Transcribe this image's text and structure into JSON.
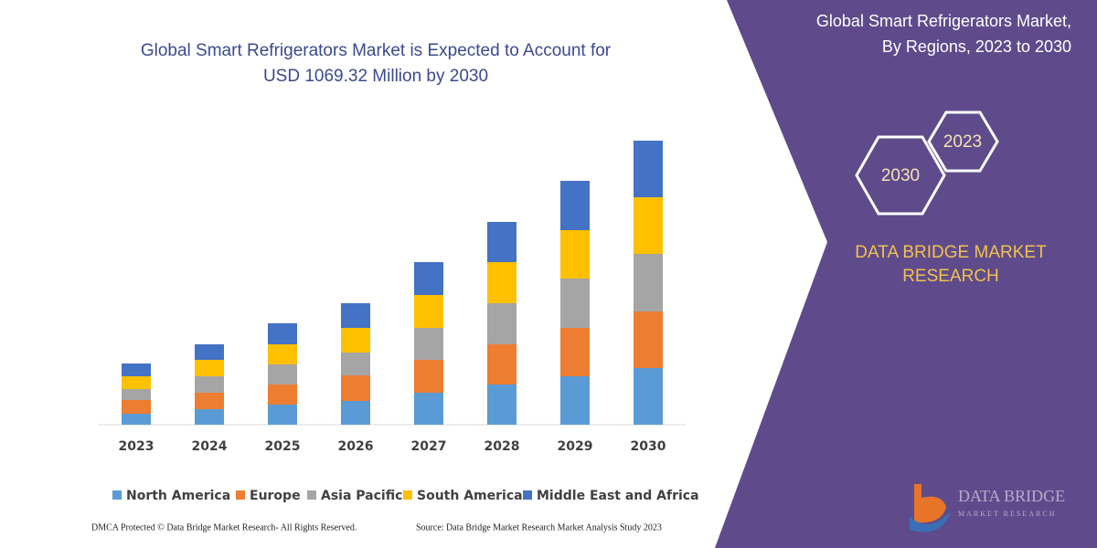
{
  "chart_data": {
    "type": "stacked-bar",
    "title": [
      "Global Smart Refrigerators Market is Expected to Account for",
      "USD 1069.32 Million by 2030"
    ],
    "categories": [
      "2023",
      "2024",
      "2025",
      "2026",
      "2027",
      "2028",
      "2029",
      "2030"
    ],
    "series": [
      {
        "name": "North America",
        "color": "#5b9bd5",
        "values": [
          12,
          17,
          22,
          26,
          35,
          44,
          53,
          62
        ]
      },
      {
        "name": "Europe",
        "color": "#ed7d31",
        "values": [
          15,
          18,
          22,
          28,
          36,
          44,
          53,
          62
        ]
      },
      {
        "name": "Asia Pacific",
        "color": "#a5a5a5",
        "values": [
          12,
          18,
          22,
          25,
          35,
          45,
          54,
          63
        ]
      },
      {
        "name": "South America",
        "color": "#ffc000",
        "values": [
          14,
          18,
          22,
          27,
          36,
          45,
          53,
          62
        ]
      },
      {
        "name": "Middle East and Africa",
        "color": "#4472c4",
        "values": [
          14,
          17,
          23,
          27,
          36,
          44,
          54,
          62
        ]
      }
    ],
    "ylim": [
      0,
      320
    ]
  },
  "panel": {
    "title": [
      "Global Smart Refrigerators Market,",
      "By Regions, 2023 to 2030"
    ],
    "hexagons": [
      "2023",
      "2030"
    ],
    "brand": [
      "DATA BRIDGE MARKET",
      "RESEARCH"
    ],
    "logo": [
      "DATA BRIDGE",
      "MARKET RESEARCH"
    ]
  },
  "footer": {
    "left": "DMCA Protected © Data Bridge Market Research- All Rights Reserved.",
    "right": "Source: Data Bridge Market Research Market Analysis Study 2023"
  }
}
